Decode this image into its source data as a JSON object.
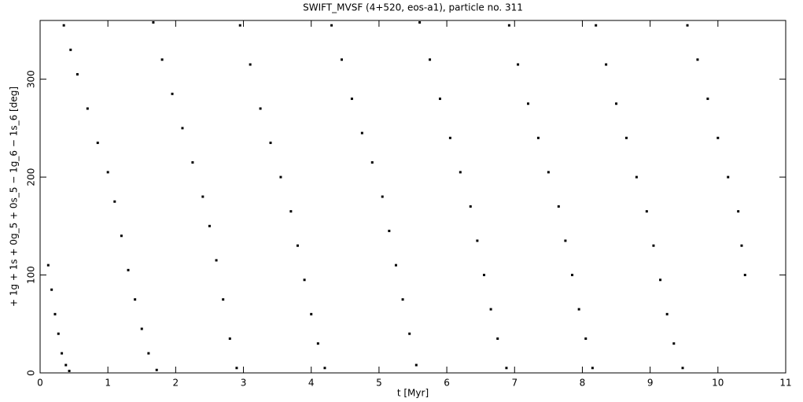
{
  "chart_data": {
    "type": "scatter",
    "title": "SWIFT_MVSF (4+520, eos-a1), particle no. 311",
    "x_label": "t [Myr]",
    "y_label": "+ 1g + 1s + 0g_5 + 0s_5 − 1g_6 − 1s_6 [deg]",
    "xlim": [
      0,
      11
    ],
    "ylim": [
      0,
      360
    ],
    "xticks": [
      0,
      1,
      2,
      3,
      4,
      5,
      6,
      7,
      8,
      9,
      10,
      11
    ],
    "yticks": [
      0,
      100,
      200,
      300
    ],
    "color": "#000000",
    "x": [
      0.12,
      0.17,
      0.22,
      0.27,
      0.32,
      0.38,
      0.43,
      0.35,
      0.45,
      0.55,
      0.7,
      0.85,
      1.0,
      1.1,
      1.2,
      1.3,
      1.4,
      1.5,
      1.6,
      1.72,
      1.67,
      1.8,
      1.95,
      2.1,
      2.25,
      2.4,
      2.5,
      2.6,
      2.7,
      2.8,
      2.9,
      2.95,
      3.1,
      3.25,
      3.4,
      3.55,
      3.7,
      3.8,
      3.9,
      4.0,
      4.1,
      4.2,
      4.3,
      4.45,
      4.6,
      4.75,
      4.9,
      5.05,
      5.15,
      5.25,
      5.35,
      5.45,
      5.55,
      5.6,
      5.75,
      5.9,
      6.05,
      6.2,
      6.35,
      6.45,
      6.55,
      6.65,
      6.75,
      6.88,
      6.92,
      7.05,
      7.2,
      7.35,
      7.5,
      7.65,
      7.75,
      7.85,
      7.95,
      8.05,
      8.15,
      8.2,
      8.35,
      8.5,
      8.65,
      8.8,
      8.95,
      9.05,
      9.15,
      9.25,
      9.35,
      9.48,
      9.55,
      9.7,
      9.85,
      10.0,
      10.15,
      10.3,
      10.35,
      10.4
    ],
    "y": [
      110,
      85,
      60,
      40,
      20,
      8,
      2,
      355,
      330,
      305,
      270,
      235,
      205,
      175,
      140,
      105,
      75,
      45,
      20,
      3,
      358,
      320,
      285,
      250,
      215,
      180,
      150,
      115,
      75,
      35,
      5,
      355,
      315,
      270,
      235,
      200,
      165,
      130,
      95,
      60,
      30,
      5,
      355,
      320,
      280,
      245,
      215,
      180,
      145,
      110,
      75,
      40,
      8,
      358,
      320,
      280,
      240,
      205,
      170,
      135,
      100,
      65,
      35,
      5,
      355,
      315,
      275,
      240,
      205,
      170,
      135,
      100,
      65,
      35,
      5,
      355,
      315,
      275,
      240,
      200,
      165,
      130,
      95,
      60,
      30,
      5,
      355,
      320,
      280,
      240,
      200,
      165,
      130,
      100
    ]
  }
}
